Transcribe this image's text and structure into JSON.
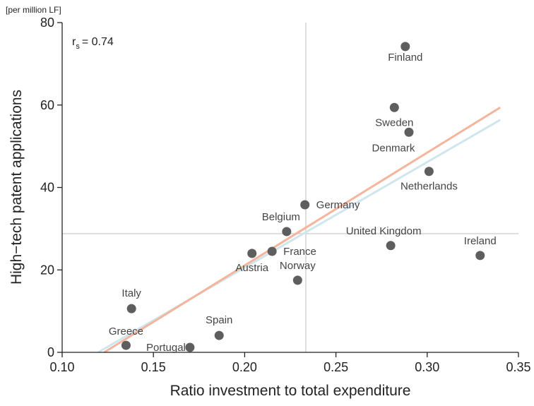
{
  "chart_data": {
    "type": "scatter",
    "unit_label": "[per million LF]",
    "xlabel": "Ratio investment to total expenditure",
    "ylabel": "High−tech patent applications",
    "annotation": {
      "symbol": "r",
      "subscript": "s",
      "text": "= 0.74"
    },
    "xlim": [
      0.1,
      0.35
    ],
    "xticks": [
      {
        "value": 0.1,
        "label": "0.10"
      },
      {
        "value": 0.15,
        "label": "0.15"
      },
      {
        "value": 0.2,
        "label": "0.20"
      },
      {
        "value": 0.25,
        "label": "0.25"
      },
      {
        "value": 0.3,
        "label": "0.30"
      },
      {
        "value": 0.35,
        "label": "0.35"
      }
    ],
    "ylim": [
      0,
      80
    ],
    "yticks": [
      0,
      20,
      40,
      60,
      80
    ],
    "reference_lines": {
      "x": 0.2335,
      "y": 28.8,
      "color": "#dddddd"
    },
    "fit_lines": [
      {
        "color": "#cfe6ee",
        "x": [
          0.1197,
          0.34
        ],
        "y": [
          0,
          56.4
        ]
      },
      {
        "color": "#f5b49c",
        "x": [
          0.123,
          0.34
        ],
        "y": [
          0,
          59.4
        ]
      }
    ],
    "points": {
      "color": "#5e5e5e",
      "labels": [
        "Finland",
        "Sweden",
        "Denmark",
        "Netherlands",
        "Germany",
        "Belgium",
        "United Kingdom",
        "Ireland",
        "France",
        "Austria",
        "Norway",
        "Italy",
        "Spain",
        "Greece",
        "Portugal"
      ],
      "x": [
        0.288,
        0.282,
        0.29,
        0.301,
        0.233,
        0.223,
        0.28,
        0.329,
        0.215,
        0.204,
        0.229,
        0.138,
        0.186,
        0.135,
        0.17
      ],
      "y": [
        74.2,
        59.4,
        53.4,
        43.9,
        35.8,
        29.3,
        25.9,
        23.5,
        24.5,
        24.0,
        17.5,
        10.6,
        4.1,
        1.7,
        1.2
      ]
    }
  }
}
